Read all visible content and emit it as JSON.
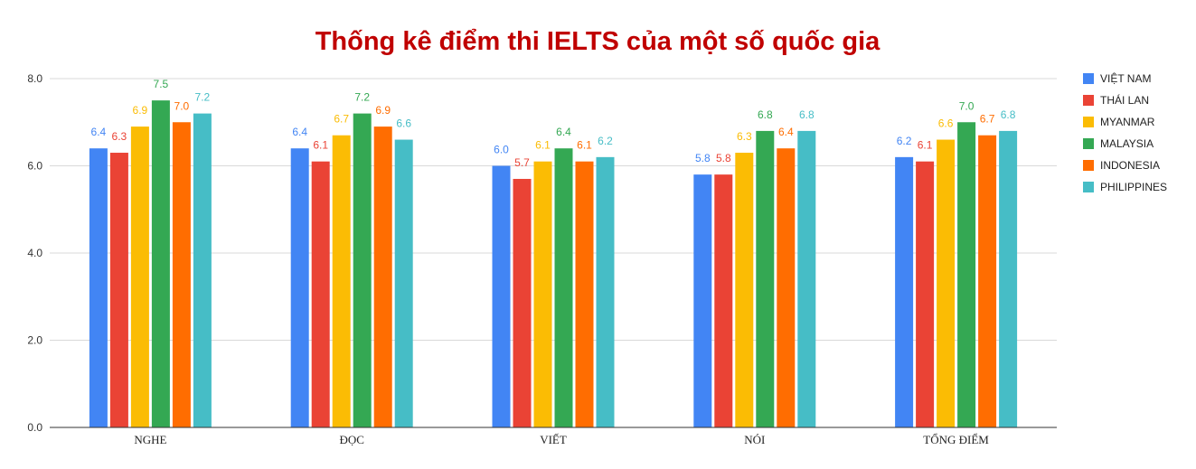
{
  "chart_data": {
    "type": "bar",
    "title": "Thống kê điểm thi IELTS của một số quốc gia",
    "title_color": "#c00000",
    "categories": [
      "NGHE",
      "ĐỌC",
      "VIẾT",
      "NÓI",
      "TỔNG ĐIỂM"
    ],
    "series": [
      {
        "name": "VIỆT NAM",
        "color": "#4285f4",
        "values": [
          6.4,
          6.4,
          6.0,
          5.8,
          6.2
        ]
      },
      {
        "name": "THÁI LAN",
        "color": "#ea4335",
        "values": [
          6.3,
          6.1,
          5.7,
          5.8,
          6.1
        ]
      },
      {
        "name": "MYANMAR",
        "color": "#fbbc04",
        "values": [
          6.9,
          6.7,
          6.1,
          6.3,
          6.6
        ]
      },
      {
        "name": "MALAYSIA",
        "color": "#34a853",
        "values": [
          7.5,
          7.2,
          6.4,
          6.8,
          7.0
        ]
      },
      {
        "name": "INDONESIA",
        "color": "#ff6d01",
        "values": [
          7.0,
          6.9,
          6.1,
          6.4,
          6.7
        ]
      },
      {
        "name": "PHILIPPINES",
        "color": "#46bdc6",
        "values": [
          7.2,
          6.6,
          6.2,
          6.8,
          6.8
        ]
      }
    ],
    "ylim": [
      0,
      8
    ],
    "yticks": [
      "0.0",
      "2.0",
      "4.0",
      "6.0",
      "8.0"
    ],
    "ytick_values": [
      0,
      2,
      4,
      6,
      8
    ],
    "xlabel": "",
    "ylabel": "",
    "grid": true,
    "legend_position": "right",
    "data_labels": true
  }
}
